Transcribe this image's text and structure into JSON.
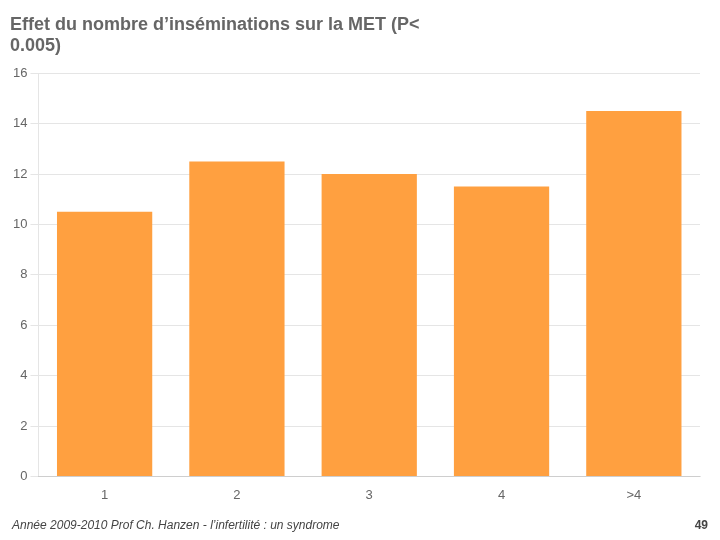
{
  "chart_data": {
    "type": "bar",
    "title": "Effet du nombre d’inséminations sur la MET (P<\n0.005)",
    "categories": [
      "1",
      "2",
      "3",
      "4",
      ">4"
    ],
    "values": [
      10.5,
      12.5,
      12.0,
      11.5,
      14.5
    ],
    "color": "#FFA040",
    "ylim": [
      0,
      16
    ],
    "yticks": [
      0,
      2,
      4,
      6,
      8,
      10,
      12,
      14,
      16
    ],
    "grid": true,
    "annotations": [
      "Année 2009-2010 Prof Ch. Hanzen - l’infertilité : un syndrome",
      "49"
    ]
  }
}
